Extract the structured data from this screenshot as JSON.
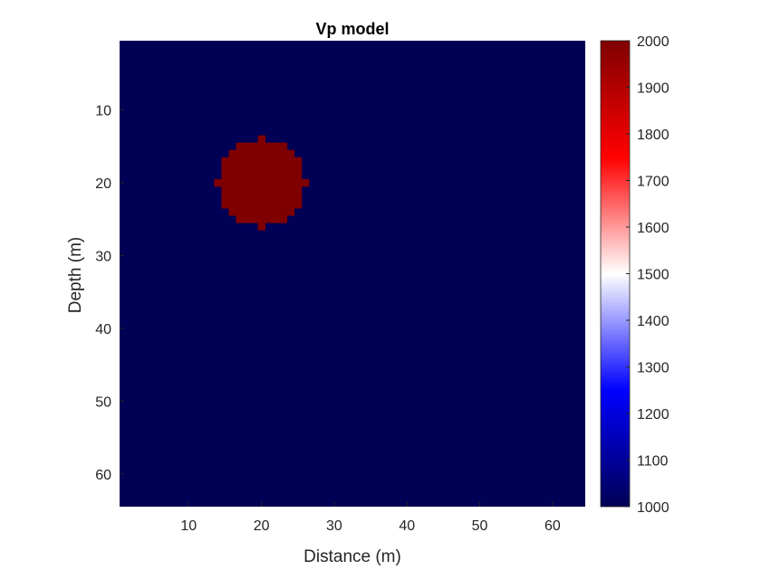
{
  "chart_data": {
    "type": "heatmap",
    "title": "Vp model",
    "xlabel": "Distance (m)",
    "ylabel": "Depth (m)",
    "xlim": [
      0.5,
      64.5
    ],
    "ylim": [
      0.5,
      64.5
    ],
    "y_direction": "reversed",
    "x_ticks": [
      10,
      20,
      30,
      40,
      50,
      60
    ],
    "y_ticks": [
      10,
      20,
      30,
      40,
      50,
      60
    ],
    "grid": false,
    "background_value": 1000,
    "anomaly": {
      "shape": "circle",
      "center_x": 20,
      "center_y": 20,
      "radius": 6,
      "value": 2000
    },
    "colorbar": {
      "colormap": "blue-white-red",
      "clim": [
        1000,
        2000
      ],
      "ticks": [
        1000,
        1100,
        1200,
        1300,
        1400,
        1500,
        1600,
        1700,
        1800,
        1900,
        2000
      ],
      "placement": "right",
      "colors": [
        "#000055",
        "#0000ff",
        "#ffffff",
        "#ff0000",
        "#7f0000"
      ]
    }
  }
}
